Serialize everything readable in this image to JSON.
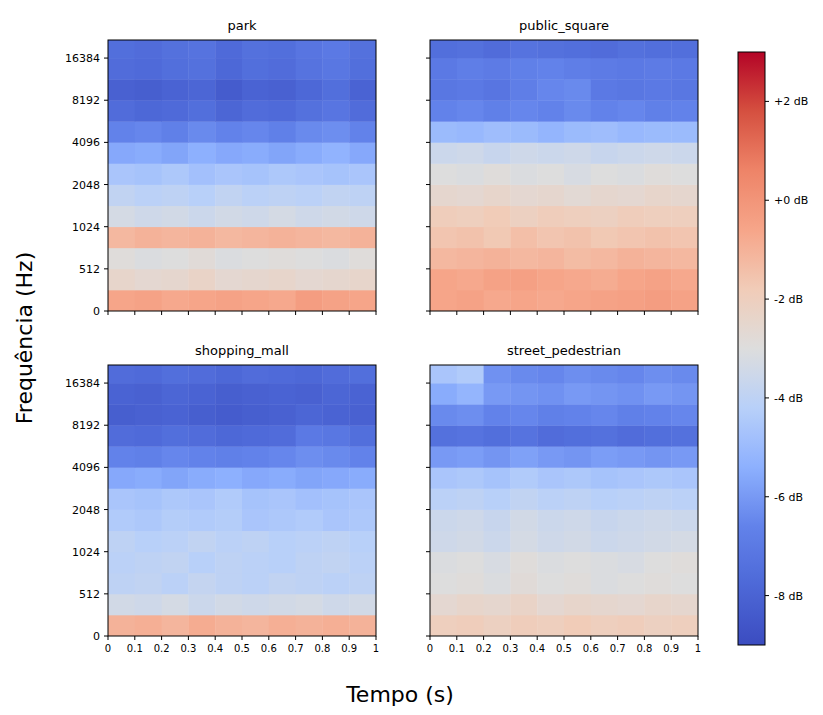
{
  "chart_data": [
    {
      "type": "heatmap",
      "title": "park",
      "tick_labels": "y",
      "xlim": [
        0,
        1
      ],
      "ylim": [
        0,
        22050
      ],
      "xticks": [
        0,
        0.1,
        0.2,
        0.3,
        0.4,
        0.5,
        0.6,
        0.7,
        0.8,
        0.9,
        1
      ],
      "yticks": [
        0,
        512,
        1024,
        2048,
        4096,
        8192,
        16384
      ],
      "x_edges": [
        0,
        0.1,
        0.2,
        0.3,
        0.4,
        0.5,
        0.6,
        0.7,
        0.8,
        0.9,
        1
      ],
      "y_edges": [
        0,
        256,
        512,
        724,
        1024,
        1448,
        2048,
        2896,
        4096,
        5793,
        8192,
        11585,
        16384,
        22050
      ],
      "cells": [
        [
          -0.6,
          -0.5,
          -0.7,
          -0.6,
          -0.5,
          -0.6,
          -0.7,
          -0.3,
          -0.5,
          -0.6
        ],
        [
          -2.4,
          -2.6,
          -2.5,
          -2.3,
          -2.6,
          -2.5,
          -2.4,
          -2.6,
          -2.5,
          -2.4
        ],
        [
          -2.9,
          -3.1,
          -3.0,
          -2.8,
          -3.1,
          -3.0,
          -2.9,
          -3.0,
          -3.1,
          -2.9
        ],
        [
          -1.2,
          -1.0,
          -1.1,
          -1.0,
          -1.2,
          -1.1,
          -1.0,
          -1.1,
          -1.2,
          -1.0
        ],
        [
          -3.3,
          -3.5,
          -3.4,
          -3.6,
          -3.4,
          -3.5,
          -3.3,
          -3.5,
          -3.4,
          -3.5
        ],
        [
          -3.9,
          -4.1,
          -4.0,
          -4.2,
          -3.9,
          -4.1,
          -4.0,
          -4.1,
          -3.9,
          -4.0
        ],
        [
          -4.6,
          -4.7,
          -4.5,
          -4.8,
          -4.6,
          -4.7,
          -4.5,
          -4.6,
          -4.7,
          -4.6
        ],
        [
          -5.6,
          -5.5,
          -5.7,
          -5.4,
          -5.6,
          -5.5,
          -5.7,
          -5.5,
          -5.3,
          -5.6
        ],
        [
          -6.6,
          -6.5,
          -6.7,
          -6.4,
          -6.6,
          -6.5,
          -6.7,
          -6.4,
          -6.3,
          -6.6
        ],
        [
          -7.6,
          -7.8,
          -7.7,
          -7.5,
          -7.9,
          -7.6,
          -7.7,
          -7.4,
          -7.2,
          -7.6
        ],
        [
          -8.1,
          -8.2,
          -8.0,
          -7.9,
          -8.3,
          -8.0,
          -8.1,
          -7.8,
          -7.5,
          -8.0
        ],
        [
          -7.6,
          -7.7,
          -7.5,
          -7.4,
          -7.8,
          -7.5,
          -7.6,
          -7.3,
          -7.1,
          -7.5
        ],
        [
          -7.5,
          -7.6,
          -7.4,
          -7.3,
          -7.7,
          -7.4,
          -7.5,
          -7.2,
          -7.0,
          -7.4
        ]
      ]
    },
    {
      "type": "heatmap",
      "title": "public_square",
      "tick_labels": false,
      "xlim": [
        0,
        1
      ],
      "ylim": [
        0,
        22050
      ],
      "xticks": [
        0,
        0.1,
        0.2,
        0.3,
        0.4,
        0.5,
        0.6,
        0.7,
        0.8,
        0.9,
        1
      ],
      "yticks": [
        0,
        512,
        1024,
        2048,
        4096,
        8192,
        16384
      ],
      "x_edges": [
        0,
        0.1,
        0.2,
        0.3,
        0.4,
        0.5,
        0.6,
        0.7,
        0.8,
        0.9,
        1
      ],
      "y_edges": [
        0,
        256,
        512,
        724,
        1024,
        1448,
        2048,
        2896,
        4096,
        5793,
        8192,
        11585,
        16384,
        22050
      ],
      "cells": [
        [
          -0.6,
          -0.5,
          -0.7,
          -0.6,
          -0.7,
          -0.6,
          -0.5,
          -0.4,
          -0.3,
          -0.5
        ],
        [
          -0.6,
          -0.7,
          -0.5,
          -0.4,
          -0.6,
          -0.7,
          -0.8,
          -0.6,
          -0.5,
          -0.7
        ],
        [
          -1.2,
          -1.1,
          -1.0,
          -1.2,
          -1.1,
          -1.3,
          -1.2,
          -1.0,
          -1.1,
          -1.2
        ],
        [
          -1.6,
          -1.5,
          -1.7,
          -1.4,
          -1.6,
          -1.5,
          -1.7,
          -1.6,
          -1.5,
          -1.6
        ],
        [
          -1.9,
          -2.0,
          -1.8,
          -2.1,
          -1.9,
          -2.0,
          -2.1,
          -1.9,
          -2.0,
          -2.0
        ],
        [
          -2.5,
          -2.6,
          -2.4,
          -2.6,
          -2.5,
          -2.7,
          -2.5,
          -2.6,
          -2.4,
          -2.5
        ],
        [
          -3.0,
          -3.1,
          -2.9,
          -3.1,
          -3.0,
          -3.2,
          -3.0,
          -3.1,
          -2.9,
          -3.0
        ],
        [
          -3.6,
          -3.5,
          -3.7,
          -3.5,
          -3.6,
          -3.5,
          -3.7,
          -3.6,
          -3.5,
          -3.6
        ],
        [
          -5.0,
          -5.1,
          -4.9,
          -5.0,
          -5.2,
          -5.0,
          -4.9,
          -5.1,
          -5.0,
          -5.0
        ],
        [
          -6.6,
          -6.5,
          -6.7,
          -6.5,
          -6.6,
          -6.4,
          -6.6,
          -6.5,
          -6.7,
          -6.6
        ],
        [
          -7.1,
          -7.0,
          -7.2,
          -6.8,
          -6.5,
          -6.4,
          -7.0,
          -7.1,
          -7.0,
          -7.1
        ],
        [
          -7.0,
          -6.8,
          -6.9,
          -6.7,
          -6.6,
          -6.8,
          -6.9,
          -7.0,
          -6.9,
          -7.0
        ],
        [
          -7.5,
          -7.4,
          -7.6,
          -7.3,
          -7.4,
          -7.5,
          -7.6,
          -7.4,
          -7.5,
          -7.5
        ]
      ]
    },
    {
      "type": "heatmap",
      "title": "shopping_mall",
      "tick_labels": true,
      "xlim": [
        0,
        1
      ],
      "ylim": [
        0,
        22050
      ],
      "xticks": [
        0,
        0.1,
        0.2,
        0.3,
        0.4,
        0.5,
        0.6,
        0.7,
        0.8,
        0.9,
        1
      ],
      "yticks": [
        0,
        512,
        1024,
        2048,
        4096,
        8192,
        16384
      ],
      "x_edges": [
        0,
        0.1,
        0.2,
        0.3,
        0.4,
        0.5,
        0.6,
        0.7,
        0.8,
        0.9,
        1
      ],
      "y_edges": [
        0,
        256,
        512,
        724,
        1024,
        1448,
        2048,
        2896,
        4096,
        5793,
        8192,
        11585,
        16384,
        22050
      ],
      "cells": [
        [
          -1.0,
          -0.9,
          -1.1,
          -0.8,
          -1.0,
          -1.1,
          -0.9,
          -1.0,
          -0.9,
          -1.0
        ],
        [
          -3.4,
          -3.5,
          -3.3,
          -3.6,
          -3.4,
          -3.5,
          -3.4,
          -3.3,
          -3.5,
          -3.4
        ],
        [
          -4.0,
          -3.9,
          -4.1,
          -3.8,
          -4.0,
          -4.1,
          -3.9,
          -4.0,
          -4.1,
          -4.0
        ],
        [
          -4.1,
          -4.0,
          -3.9,
          -4.2,
          -4.0,
          -4.1,
          -4.2,
          -4.0,
          -3.9,
          -4.1
        ],
        [
          -4.0,
          -4.2,
          -4.1,
          -3.9,
          -4.1,
          -4.0,
          -4.2,
          -4.1,
          -4.0,
          -4.2
        ],
        [
          -4.4,
          -4.5,
          -4.3,
          -4.4,
          -4.3,
          -4.6,
          -4.5,
          -4.4,
          -4.6,
          -4.5
        ],
        [
          -4.6,
          -4.7,
          -4.5,
          -4.6,
          -4.4,
          -4.7,
          -4.6,
          -4.8,
          -4.7,
          -4.6
        ],
        [
          -5.6,
          -5.5,
          -5.7,
          -5.5,
          -5.4,
          -5.6,
          -5.5,
          -5.7,
          -5.6,
          -5.5
        ],
        [
          -6.6,
          -6.7,
          -6.5,
          -6.6,
          -6.7,
          -6.6,
          -6.5,
          -6.3,
          -6.4,
          -6.6
        ],
        [
          -7.6,
          -7.7,
          -7.5,
          -7.6,
          -7.8,
          -7.7,
          -7.6,
          -7.0,
          -7.1,
          -7.5
        ],
        [
          -8.2,
          -8.1,
          -8.0,
          -8.2,
          -8.3,
          -8.2,
          -8.1,
          -7.9,
          -8.0,
          -8.1
        ],
        [
          -8.0,
          -8.1,
          -7.9,
          -8.0,
          -8.2,
          -8.1,
          -8.0,
          -8.1,
          -7.9,
          -8.0
        ],
        [
          -7.6,
          -7.7,
          -7.5,
          -7.6,
          -7.8,
          -7.6,
          -7.7,
          -7.8,
          -7.6,
          -7.5
        ]
      ]
    },
    {
      "type": "heatmap",
      "title": "street_pedestrian",
      "tick_labels": "x",
      "xlim": [
        0,
        1
      ],
      "ylim": [
        0,
        22050
      ],
      "xticks": [
        0,
        0.1,
        0.2,
        0.3,
        0.4,
        0.5,
        0.6,
        0.7,
        0.8,
        0.9,
        1
      ],
      "yticks": [
        0,
        512,
        1024,
        2048,
        4096,
        8192,
        16384
      ],
      "x_edges": [
        0,
        0.1,
        0.2,
        0.3,
        0.4,
        0.5,
        0.6,
        0.7,
        0.8,
        0.9,
        1
      ],
      "y_edges": [
        0,
        256,
        512,
        724,
        1024,
        1448,
        2048,
        2896,
        4096,
        5793,
        8192,
        11585,
        16384,
        22050
      ],
      "cells": [
        [
          -2.0,
          -1.9,
          -2.1,
          -1.9,
          -2.0,
          -1.8,
          -2.0,
          -1.9,
          -2.1,
          -2.0
        ],
        [
          -2.6,
          -2.4,
          -2.5,
          -2.3,
          -2.6,
          -2.4,
          -2.5,
          -2.6,
          -2.4,
          -2.5
        ],
        [
          -3.0,
          -2.9,
          -3.1,
          -2.8,
          -3.0,
          -2.9,
          -3.1,
          -3.0,
          -2.9,
          -3.0
        ],
        [
          -3.1,
          -3.0,
          -3.2,
          -2.9,
          -3.1,
          -3.0,
          -3.1,
          -3.2,
          -3.0,
          -2.9
        ],
        [
          -3.5,
          -3.4,
          -3.6,
          -3.3,
          -3.5,
          -3.4,
          -3.6,
          -3.5,
          -3.4,
          -3.3
        ],
        [
          -3.6,
          -3.5,
          -3.7,
          -3.4,
          -3.6,
          -3.5,
          -3.7,
          -3.6,
          -3.5,
          -3.6
        ],
        [
          -4.1,
          -4.0,
          -4.2,
          -3.9,
          -4.1,
          -4.0,
          -4.2,
          -4.1,
          -4.0,
          -4.1
        ],
        [
          -4.6,
          -4.5,
          -4.7,
          -4.4,
          -4.6,
          -4.5,
          -4.7,
          -4.6,
          -4.5,
          -4.6
        ],
        [
          -6.0,
          -5.9,
          -6.1,
          -5.8,
          -6.0,
          -6.1,
          -5.9,
          -6.0,
          -6.1,
          -6.0
        ],
        [
          -7.4,
          -7.3,
          -7.5,
          -7.3,
          -7.6,
          -7.5,
          -7.4,
          -7.6,
          -7.5,
          -7.4
        ],
        [
          -6.4,
          -6.3,
          -6.6,
          -6.5,
          -6.7,
          -6.6,
          -6.5,
          -6.7,
          -6.6,
          -6.5
        ],
        [
          -5.5,
          -5.2,
          -6.0,
          -6.1,
          -6.2,
          -6.0,
          -6.1,
          -6.2,
          -6.0,
          -6.1
        ],
        [
          -4.6,
          -4.4,
          -6.2,
          -6.4,
          -6.5,
          -6.3,
          -6.4,
          -6.5,
          -6.3,
          -6.4
        ]
      ]
    }
  ],
  "figure": {
    "xlabel": "Tempo (s)",
    "ylabel": "Frequência (Hz)",
    "colorbar": {
      "range": [
        -9,
        3
      ],
      "ticks": [
        {
          "value": 2,
          "label": "+2 dB"
        },
        {
          "value": 0,
          "label": "+0 dB"
        },
        {
          "value": -2,
          "label": "-2 dB"
        },
        {
          "value": -4,
          "label": "-4 dB"
        },
        {
          "value": -6,
          "label": "-6 dB"
        },
        {
          "value": -8,
          "label": "-8 dB"
        }
      ]
    }
  }
}
